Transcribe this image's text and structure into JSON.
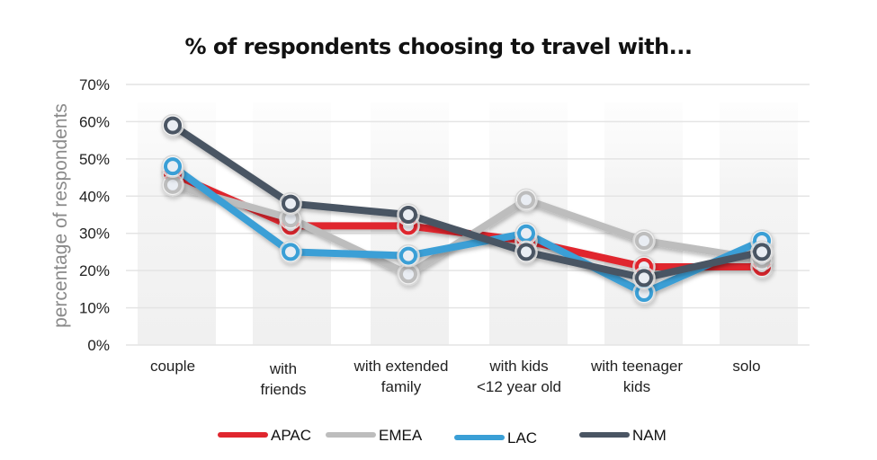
{
  "chart_data": {
    "type": "line",
    "title": "% of respondents choosing to travel with...",
    "xlabel": "",
    "ylabel": "percentage of respondents",
    "ylim": [
      0,
      70
    ],
    "yticks": [
      "0%",
      "10%",
      "20%",
      "30%",
      "40%",
      "50%",
      "60%",
      "70%"
    ],
    "grid": true,
    "legend_position": "bottom",
    "categories": [
      [
        "couple"
      ],
      [
        "with",
        "friends"
      ],
      [
        "with extended",
        "family"
      ],
      [
        "with kids",
        "<12 year old"
      ],
      [
        "with teenager",
        "kids"
      ],
      [
        "solo"
      ]
    ],
    "series": [
      {
        "name": "APAC",
        "color": "#e0262e",
        "values": [
          46,
          32,
          32,
          28,
          21,
          21
        ]
      },
      {
        "name": "EMEA",
        "color": "#bdbdbd",
        "values": [
          43,
          34,
          19,
          39,
          28,
          23
        ]
      },
      {
        "name": "LAC",
        "color": "#3a9fd6",
        "values": [
          48,
          25,
          24,
          30,
          14,
          28
        ]
      },
      {
        "name": "NAM",
        "color": "#4a5563",
        "values": [
          59,
          38,
          35,
          25,
          18,
          25
        ]
      }
    ]
  }
}
